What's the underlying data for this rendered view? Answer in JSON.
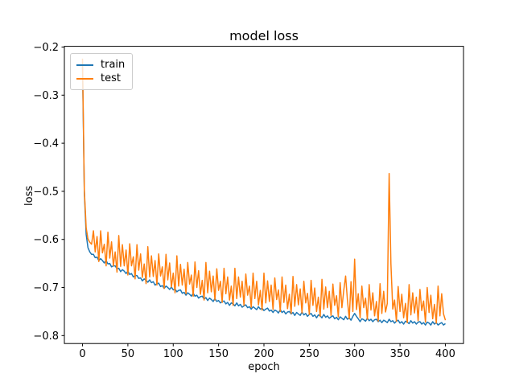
{
  "chart_data": {
    "type": "line",
    "title": "model loss",
    "xlabel": "epoch",
    "ylabel": "loss",
    "grid": false,
    "xlim": [
      -20,
      420
    ],
    "ylim": [
      -0.8165,
      -0.1985
    ],
    "xticks": [
      0,
      50,
      100,
      150,
      200,
      250,
      300,
      350,
      400
    ],
    "xtick_labels": [
      "0",
      "50",
      "100",
      "150",
      "200",
      "250",
      "300",
      "350",
      "400"
    ],
    "yticks": [
      -0.2,
      -0.3,
      -0.4,
      -0.5,
      -0.6,
      -0.7,
      -0.8
    ],
    "ytick_labels": [
      "−0.2",
      "−0.3",
      "−0.4",
      "−0.5",
      "−0.6",
      "−0.7",
      "−0.8"
    ],
    "legend": {
      "position": "upper left",
      "entries": [
        {
          "label": "train",
          "color": "#1f77b4"
        },
        {
          "label": "test",
          "color": "#ff7f0e"
        }
      ]
    },
    "x_start": 0,
    "x_step": 2,
    "series": [
      {
        "name": "train",
        "color": "#1f77b4",
        "values": [
          -0.236,
          -0.502,
          -0.59,
          -0.617,
          -0.626,
          -0.631,
          -0.631,
          -0.638,
          -0.637,
          -0.644,
          -0.64,
          -0.644,
          -0.649,
          -0.644,
          -0.651,
          -0.65,
          -0.657,
          -0.655,
          -0.655,
          -0.661,
          -0.66,
          -0.667,
          -0.663,
          -0.666,
          -0.671,
          -0.666,
          -0.673,
          -0.671,
          -0.678,
          -0.675,
          -0.675,
          -0.681,
          -0.68,
          -0.686,
          -0.682,
          -0.685,
          -0.689,
          -0.684,
          -0.69,
          -0.688,
          -0.695,
          -0.692,
          -0.691,
          -0.698,
          -0.696,
          -0.702,
          -0.697,
          -0.7,
          -0.704,
          -0.699,
          -0.705,
          -0.703,
          -0.709,
          -0.706,
          -0.705,
          -0.712,
          -0.71,
          -0.716,
          -0.711,
          -0.714,
          -0.718,
          -0.712,
          -0.718,
          -0.716,
          -0.722,
          -0.719,
          -0.718,
          -0.724,
          -0.721,
          -0.727,
          -0.722,
          -0.725,
          -0.729,
          -0.723,
          -0.729,
          -0.727,
          -0.732,
          -0.729,
          -0.728,
          -0.734,
          -0.731,
          -0.737,
          -0.732,
          -0.734,
          -0.738,
          -0.732,
          -0.738,
          -0.735,
          -0.741,
          -0.738,
          -0.736,
          -0.742,
          -0.74,
          -0.745,
          -0.74,
          -0.743,
          -0.746,
          -0.74,
          -0.745,
          -0.743,
          -0.748,
          -0.745,
          -0.743,
          -0.749,
          -0.747,
          -0.752,
          -0.747,
          -0.749,
          -0.753,
          -0.746,
          -0.752,
          -0.749,
          -0.755,
          -0.751,
          -0.75,
          -0.755,
          -0.752,
          -0.758,
          -0.752,
          -0.755,
          -0.758,
          -0.751,
          -0.757,
          -0.754,
          -0.76,
          -0.756,
          -0.754,
          -0.76,
          -0.757,
          -0.763,
          -0.757,
          -0.759,
          -0.763,
          -0.756,
          -0.762,
          -0.759,
          -0.764,
          -0.761,
          -0.759,
          -0.765,
          -0.762,
          -0.767,
          -0.761,
          -0.764,
          -0.767,
          -0.76,
          -0.766,
          -0.763,
          -0.768,
          -0.76,
          -0.754,
          -0.76,
          -0.765,
          -0.771,
          -0.765,
          -0.767,
          -0.77,
          -0.764,
          -0.769,
          -0.766,
          -0.771,
          -0.767,
          -0.766,
          -0.771,
          -0.768,
          -0.773,
          -0.768,
          -0.77,
          -0.773,
          -0.766,
          -0.771,
          -0.769,
          -0.774,
          -0.77,
          -0.768,
          -0.774,
          -0.771,
          -0.776,
          -0.77,
          -0.772,
          -0.775,
          -0.769,
          -0.774,
          -0.771,
          -0.776,
          -0.772,
          -0.771,
          -0.776,
          -0.773,
          -0.778,
          -0.772,
          -0.774,
          -0.778,
          -0.771,
          -0.776,
          -0.773,
          -0.778,
          -0.775,
          -0.773,
          -0.778,
          -0.775
        ]
      },
      {
        "name": "test",
        "color": "#ff7f0e",
        "values": [
          -0.224,
          -0.497,
          -0.576,
          -0.599,
          -0.606,
          -0.61,
          -0.582,
          -0.626,
          -0.594,
          -0.646,
          -0.582,
          -0.628,
          -0.61,
          -0.655,
          -0.585,
          -0.639,
          -0.605,
          -0.655,
          -0.626,
          -0.668,
          -0.592,
          -0.656,
          -0.611,
          -0.655,
          -0.622,
          -0.674,
          -0.609,
          -0.655,
          -0.636,
          -0.682,
          -0.611,
          -0.664,
          -0.63,
          -0.679,
          -0.651,
          -0.692,
          -0.615,
          -0.678,
          -0.634,
          -0.677,
          -0.644,
          -0.695,
          -0.63,
          -0.676,
          -0.657,
          -0.702,
          -0.631,
          -0.684,
          -0.649,
          -0.699,
          -0.67,
          -0.711,
          -0.634,
          -0.697,
          -0.652,
          -0.695,
          -0.662,
          -0.713,
          -0.648,
          -0.693,
          -0.674,
          -0.718,
          -0.647,
          -0.7,
          -0.665,
          -0.714,
          -0.685,
          -0.726,
          -0.648,
          -0.711,
          -0.666,
          -0.709,
          -0.676,
          -0.726,
          -0.661,
          -0.706,
          -0.687,
          -0.731,
          -0.66,
          -0.713,
          -0.678,
          -0.726,
          -0.697,
          -0.737,
          -0.66,
          -0.723,
          -0.678,
          -0.72,
          -0.687,
          -0.737,
          -0.672,
          -0.716,
          -0.697,
          -0.741,
          -0.67,
          -0.723,
          -0.687,
          -0.736,
          -0.706,
          -0.747,
          -0.67,
          -0.732,
          -0.686,
          -0.729,
          -0.695,
          -0.746,
          -0.68,
          -0.725,
          -0.705,
          -0.75,
          -0.678,
          -0.731,
          -0.695,
          -0.744,
          -0.714,
          -0.754,
          -0.677,
          -0.739,
          -0.694,
          -0.736,
          -0.703,
          -0.753,
          -0.687,
          -0.732,
          -0.712,
          -0.756,
          -0.685,
          -0.737,
          -0.701,
          -0.75,
          -0.72,
          -0.76,
          -0.683,
          -0.745,
          -0.699,
          -0.742,
          -0.708,
          -0.758,
          -0.693,
          -0.737,
          -0.717,
          -0.761,
          -0.69,
          -0.742,
          -0.706,
          -0.676,
          -0.725,
          -0.765,
          -0.688,
          -0.75,
          -0.641,
          -0.746,
          -0.713,
          -0.763,
          -0.697,
          -0.742,
          -0.722,
          -0.766,
          -0.694,
          -0.747,
          -0.711,
          -0.759,
          -0.729,
          -0.77,
          -0.692,
          -0.754,
          -0.708,
          -0.751,
          -0.733,
          -0.463,
          -0.651,
          -0.745,
          -0.726,
          -0.77,
          -0.698,
          -0.75,
          -0.714,
          -0.763,
          -0.733,
          -0.773,
          -0.694,
          -0.757,
          -0.711,
          -0.753,
          -0.72,
          -0.769,
          -0.704,
          -0.748,
          -0.728,
          -0.772,
          -0.7,
          -0.752,
          -0.716,
          -0.765,
          -0.735,
          -0.774,
          -0.697,
          -0.759,
          -0.713,
          -0.755,
          -0.768
        ]
      }
    ]
  }
}
